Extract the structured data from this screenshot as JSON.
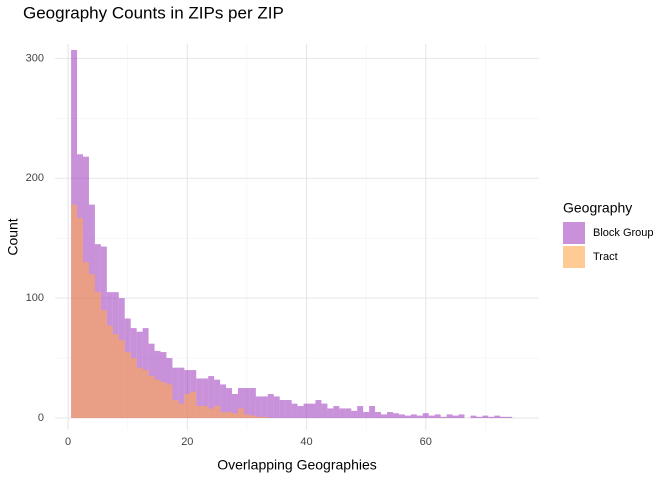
{
  "chart_data": {
    "type": "histogram",
    "title": "Geography Counts in ZIPs per ZIP",
    "x_label": "Overlapping Geographies",
    "y_label": "Count",
    "legend_title": "Geography",
    "legend_position": "right",
    "bins": [
      0.5,
      1.5,
      2.5,
      3.5,
      4.5,
      5.5,
      6.5,
      7.5,
      8.5,
      9.5,
      10.5,
      11.5,
      12.5,
      13.5,
      14.5,
      15.5,
      16.5,
      17.5,
      18.5,
      19.5,
      20.5,
      21.5,
      22.5,
      23.5,
      24.5,
      25.5,
      26.5,
      27.5,
      28.5,
      29.5,
      30.5,
      31.5,
      32.5,
      33.5,
      34.5,
      35.5,
      36.5,
      37.5,
      38.5,
      39.5,
      40.5,
      41.5,
      42.5,
      43.5,
      44.5,
      45.5,
      46.5,
      47.5,
      48.5,
      49.5,
      50.5,
      51.5,
      52.5,
      53.5,
      54.5,
      55.5,
      56.5,
      57.5,
      58.5,
      59.5,
      60.5,
      61.5,
      62.5,
      63.5,
      64.5,
      65.5,
      66.5,
      67.5,
      68.5,
      69.5,
      70.5,
      71.5,
      72.5,
      73.5,
      74.5,
      75.5
    ],
    "series": [
      {
        "name": "Block Group",
        "color": "#a347c2",
        "values": [
          307,
          220,
          218,
          178,
          145,
          143,
          105,
          105,
          100,
          83,
          75,
          72,
          75,
          62,
          56,
          55,
          50,
          42,
          42,
          40,
          40,
          33,
          33,
          35,
          32,
          28,
          25,
          20,
          25,
          25,
          25,
          18,
          18,
          20,
          18,
          15,
          15,
          12,
          10,
          12,
          12,
          15,
          12,
          8,
          10,
          8,
          8,
          6,
          10,
          5,
          10,
          5,
          3,
          5,
          4,
          3,
          2,
          3,
          2,
          4,
          2,
          3,
          1,
          3,
          2,
          3,
          0,
          2,
          1,
          2,
          1,
          2,
          1,
          1,
          0
        ]
      },
      {
        "name": "Tract",
        "color": "#ffa64d",
        "values": [
          178,
          167,
          130,
          120,
          105,
          90,
          77,
          70,
          65,
          55,
          50,
          42,
          40,
          35,
          32,
          30,
          28,
          15,
          12,
          20,
          22,
          10,
          10,
          8,
          10,
          5,
          5,
          4,
          8,
          3,
          2,
          1,
          1,
          0,
          0,
          0,
          0,
          0,
          0,
          0,
          0,
          0,
          0,
          0,
          0,
          0,
          0,
          0,
          0,
          0,
          0,
          0,
          0,
          0,
          0,
          0,
          0,
          0,
          0,
          0,
          0,
          0,
          0,
          0,
          0,
          0,
          0,
          0,
          0,
          0,
          0,
          0,
          0,
          0,
          0
        ]
      }
    ],
    "opacity": 0.6,
    "xlim": [
      -2.2,
      79
    ],
    "ylim": [
      -10,
      312
    ],
    "xticks": [
      0,
      20,
      40,
      60
    ],
    "yticks": [
      0,
      100,
      200,
      300
    ],
    "x_minor_grid": [
      10,
      30,
      50,
      70
    ],
    "y_minor_grid": [
      50,
      150,
      250
    ],
    "grid": true
  }
}
